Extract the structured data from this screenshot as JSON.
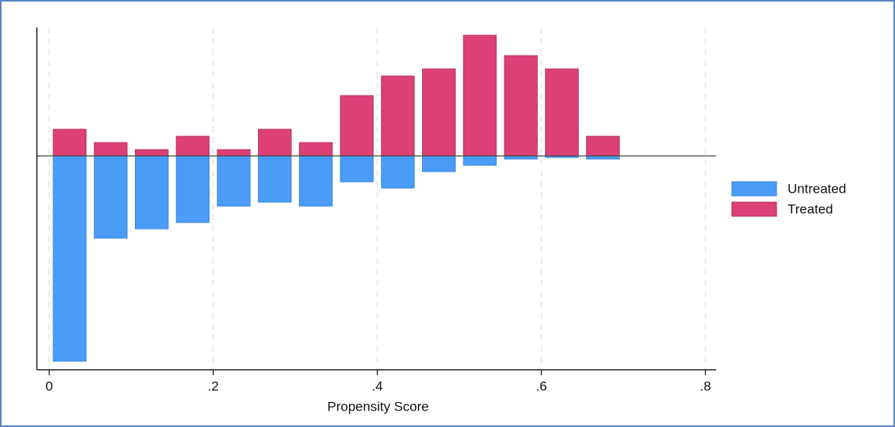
{
  "chart_data": {
    "type": "histogram",
    "xlabel": "Propensity Score",
    "bins": [
      0,
      0.05,
      0.1,
      0.15,
      0.2,
      0.25,
      0.3,
      0.35,
      0.4,
      0.45,
      0.5,
      0.55,
      0.6,
      0.65,
      0.7
    ],
    "series": [
      {
        "name": "Untreated",
        "color": "#4a9cf7",
        "values": [
          -262,
          -105,
          -93,
          -85,
          -64,
          -59,
          -64,
          -33,
          -41,
          -20,
          -12,
          -4,
          -2,
          -4
        ]
      },
      {
        "name": "Treated",
        "color": "#dc4077",
        "values": [
          34,
          17,
          8,
          25,
          8,
          34,
          17,
          77,
          102,
          111,
          154,
          128,
          111,
          25
        ]
      }
    ],
    "xlim": [
      -0.015,
      0.813
    ],
    "ylim": [
      -273,
      164
    ],
    "xticks": [
      0,
      {
        "value": 0.2,
        "label": ".2"
      },
      {
        "value": 0.4,
        "label": ".4"
      },
      {
        "value": 0.6,
        "label": ".6"
      },
      {
        "value": 0.8,
        "label": ".8"
      }
    ],
    "grid": true,
    "legend": "right"
  }
}
